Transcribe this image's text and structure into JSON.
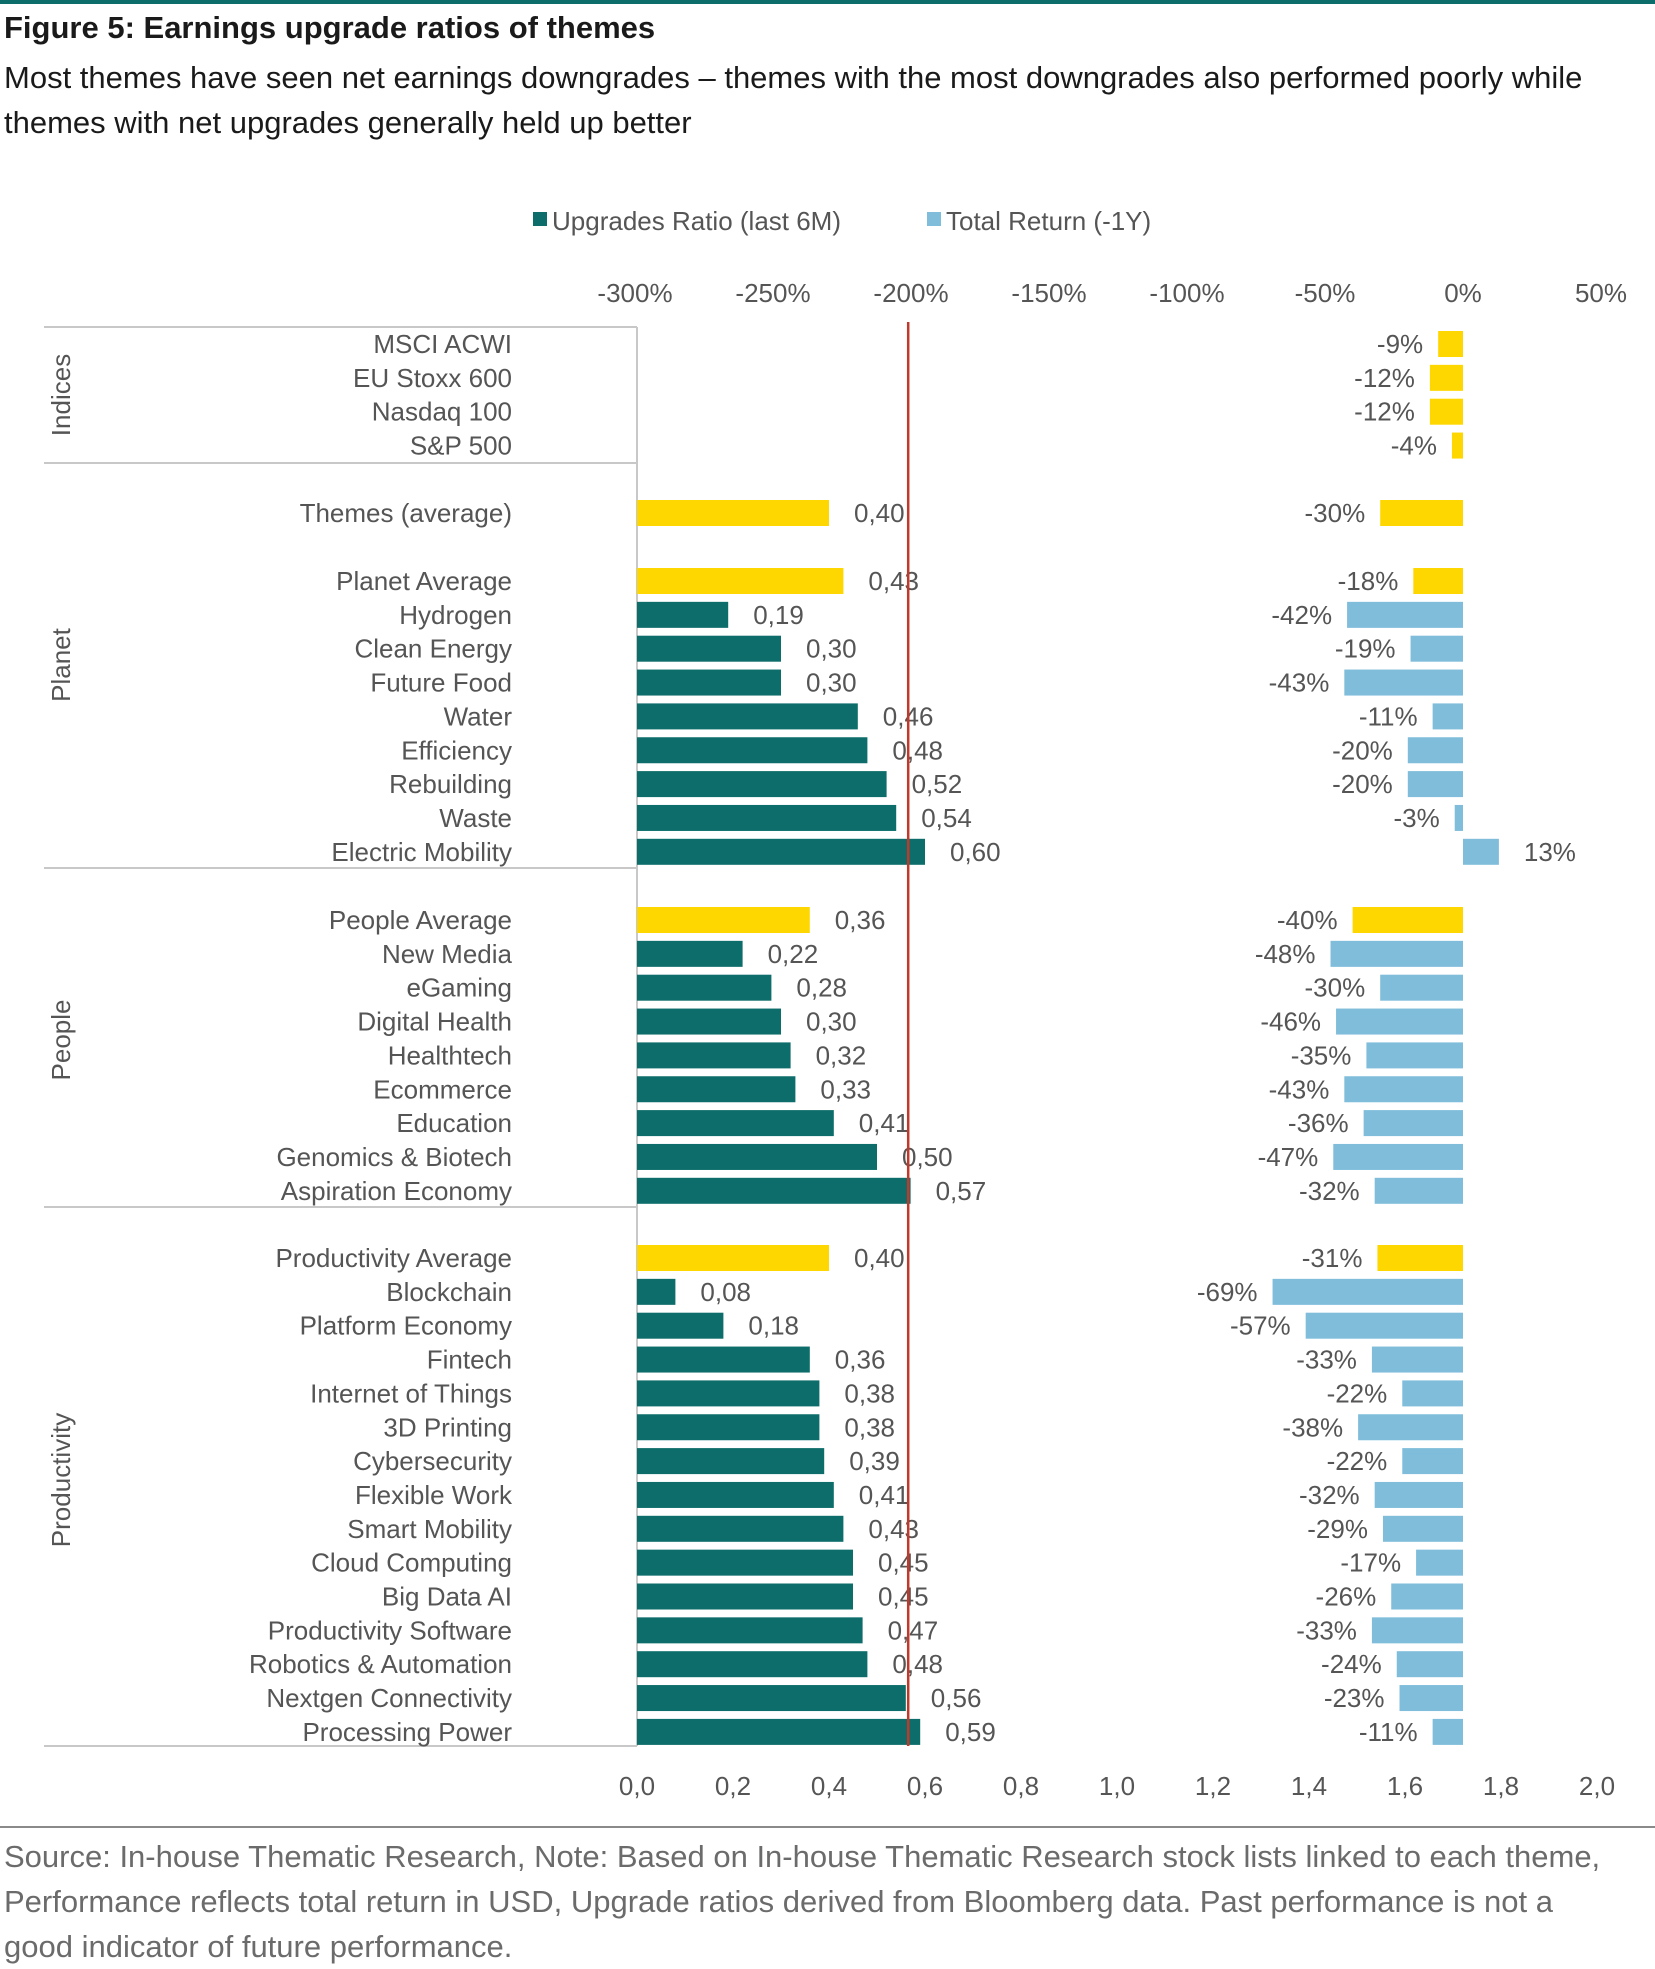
{
  "figure": {
    "title": "Figure 5: Earnings upgrade ratios of themes",
    "subtitle": "Most themes have seen net earnings downgrades – themes with the most downgrades also performed poorly while themes with net upgrades generally held up better",
    "footnote": "Source: In-house Thematic Research, Note: Based on In-house Thematic Research stock lists linked to each theme, Performance reflects total return in USD, Upgrade ratios derived from Bloomberg data. Past performance is not a good indicator of future performance."
  },
  "colors": {
    "upgrades": "#0d6d6a",
    "total_return": "#7fbddb",
    "average": "#ffd700",
    "reference_line": "#c0392b",
    "accent_line": "#0d6d6a"
  },
  "chart_data": {
    "type": "bar",
    "orientation": "horizontal",
    "legend": {
      "position": "top",
      "entries": [
        {
          "name": "Upgrades Ratio (last 6M)",
          "color": "#0d6d6a"
        },
        {
          "name": "Total Return (-1Y)",
          "color": "#7fbddb"
        }
      ]
    },
    "bottom_axis": {
      "ticks": [
        "0,0",
        "0,2",
        "0,4",
        "0,6",
        "0,8",
        "1,0",
        "1,2",
        "1,4",
        "1,6",
        "1,8",
        "2,0"
      ],
      "range": [
        0,
        2.0
      ]
    },
    "top_axis": {
      "ticks": [
        "-300%",
        "-250%",
        "-200%",
        "-150%",
        "-100%",
        "-50%",
        "0%",
        "50%"
      ],
      "range": [
        -300,
        50
      ]
    },
    "reference_line": {
      "upgrades_ratio": 0.565
    },
    "groups": [
      {
        "name": "Indices",
        "items": [
          {
            "label": "MSCI ACWI",
            "ratio": null,
            "ratio_label": "",
            "return": -9,
            "return_label": "-9%",
            "average": true
          },
          {
            "label": "EU Stoxx 600",
            "ratio": null,
            "ratio_label": "",
            "return": -12,
            "return_label": "-12%",
            "average": true
          },
          {
            "label": "Nasdaq 100",
            "ratio": null,
            "ratio_label": "",
            "return": -12,
            "return_label": "-12%",
            "average": true
          },
          {
            "label": "S&P 500",
            "ratio": null,
            "ratio_label": "",
            "return": -4,
            "return_label": "-4%",
            "average": true
          }
        ]
      },
      {
        "name": "",
        "items": [
          {
            "label": "Themes (average)",
            "ratio": 0.4,
            "ratio_label": "0,40",
            "return": -30,
            "return_label": "-30%",
            "average": true
          }
        ]
      },
      {
        "name": "Planet",
        "items": [
          {
            "label": "Planet Average",
            "ratio": 0.43,
            "ratio_label": "0,43",
            "return": -18,
            "return_label": "-18%",
            "average": true
          },
          {
            "label": "Hydrogen",
            "ratio": 0.19,
            "ratio_label": "0,19",
            "return": -42,
            "return_label": "-42%",
            "average": false
          },
          {
            "label": "Clean Energy",
            "ratio": 0.3,
            "ratio_label": "0,30",
            "return": -19,
            "return_label": "-19%",
            "average": false
          },
          {
            "label": "Future Food",
            "ratio": 0.3,
            "ratio_label": "0,30",
            "return": -43,
            "return_label": "-43%",
            "average": false
          },
          {
            "label": "Water",
            "ratio": 0.46,
            "ratio_label": "0,46",
            "return": -11,
            "return_label": "-11%",
            "average": false
          },
          {
            "label": "Efficiency",
            "ratio": 0.48,
            "ratio_label": "0,48",
            "return": -20,
            "return_label": "-20%",
            "average": false
          },
          {
            "label": "Rebuilding",
            "ratio": 0.52,
            "ratio_label": "0,52",
            "return": -20,
            "return_label": "-20%",
            "average": false
          },
          {
            "label": "Waste",
            "ratio": 0.54,
            "ratio_label": "0,54",
            "return": -3,
            "return_label": "-3%",
            "average": false
          },
          {
            "label": "Electric Mobility",
            "ratio": 0.6,
            "ratio_label": "0,60",
            "return": 13,
            "return_label": "13%",
            "average": false
          }
        ]
      },
      {
        "name": "People",
        "items": [
          {
            "label": "People Average",
            "ratio": 0.36,
            "ratio_label": "0,36",
            "return": -40,
            "return_label": "-40%",
            "average": true
          },
          {
            "label": "New Media",
            "ratio": 0.22,
            "ratio_label": "0,22",
            "return": -48,
            "return_label": "-48%",
            "average": false
          },
          {
            "label": "eGaming",
            "ratio": 0.28,
            "ratio_label": "0,28",
            "return": -30,
            "return_label": "-30%",
            "average": false
          },
          {
            "label": "Digital Health",
            "ratio": 0.3,
            "ratio_label": "0,30",
            "return": -46,
            "return_label": "-46%",
            "average": false
          },
          {
            "label": "Healthtech",
            "ratio": 0.32,
            "ratio_label": "0,32",
            "return": -35,
            "return_label": "-35%",
            "average": false
          },
          {
            "label": "Ecommerce",
            "ratio": 0.33,
            "ratio_label": "0,33",
            "return": -43,
            "return_label": "-43%",
            "average": false
          },
          {
            "label": "Education",
            "ratio": 0.41,
            "ratio_label": "0,41",
            "return": -36,
            "return_label": "-36%",
            "average": false
          },
          {
            "label": "Genomics & Biotech",
            "ratio": 0.5,
            "ratio_label": "0,50",
            "return": -47,
            "return_label": "-47%",
            "average": false
          },
          {
            "label": "Aspiration Economy",
            "ratio": 0.57,
            "ratio_label": "0,57",
            "return": -32,
            "return_label": "-32%",
            "average": false
          }
        ]
      },
      {
        "name": "Productivity",
        "items": [
          {
            "label": "Productivity Average",
            "ratio": 0.4,
            "ratio_label": "0,40",
            "return": -31,
            "return_label": "-31%",
            "average": true
          },
          {
            "label": "Blockchain",
            "ratio": 0.08,
            "ratio_label": "0,08",
            "return": -69,
            "return_label": "-69%",
            "average": false
          },
          {
            "label": "Platform Economy",
            "ratio": 0.18,
            "ratio_label": "0,18",
            "return": -57,
            "return_label": "-57%",
            "average": false
          },
          {
            "label": "Fintech",
            "ratio": 0.36,
            "ratio_label": "0,36",
            "return": -33,
            "return_label": "-33%",
            "average": false
          },
          {
            "label": "Internet of Things",
            "ratio": 0.38,
            "ratio_label": "0,38",
            "return": -22,
            "return_label": "-22%",
            "average": false
          },
          {
            "label": "3D Printing",
            "ratio": 0.38,
            "ratio_label": "0,38",
            "return": -38,
            "return_label": "-38%",
            "average": false
          },
          {
            "label": "Cybersecurity",
            "ratio": 0.39,
            "ratio_label": "0,39",
            "return": -22,
            "return_label": "-22%",
            "average": false
          },
          {
            "label": "Flexible Work",
            "ratio": 0.41,
            "ratio_label": "0,41",
            "return": -32,
            "return_label": "-32%",
            "average": false
          },
          {
            "label": "Smart Mobility",
            "ratio": 0.43,
            "ratio_label": "0,43",
            "return": -29,
            "return_label": "-29%",
            "average": false
          },
          {
            "label": "Cloud Computing",
            "ratio": 0.45,
            "ratio_label": "0,45",
            "return": -17,
            "return_label": "-17%",
            "average": false
          },
          {
            "label": "Big Data AI",
            "ratio": 0.45,
            "ratio_label": "0,45",
            "return": -26,
            "return_label": "-26%",
            "average": false
          },
          {
            "label": "Productivity Software",
            "ratio": 0.47,
            "ratio_label": "0,47",
            "return": -33,
            "return_label": "-33%",
            "average": false
          },
          {
            "label": "Robotics & Automation",
            "ratio": 0.48,
            "ratio_label": "0,48",
            "return": -24,
            "return_label": "-24%",
            "average": false
          },
          {
            "label": "Nextgen Connectivity",
            "ratio": 0.56,
            "ratio_label": "0,56",
            "return": -23,
            "return_label": "-23%",
            "average": false
          },
          {
            "label": "Processing Power",
            "ratio": 0.59,
            "ratio_label": "0,59",
            "return": -11,
            "return_label": "-11%",
            "average": false
          }
        ]
      }
    ]
  }
}
